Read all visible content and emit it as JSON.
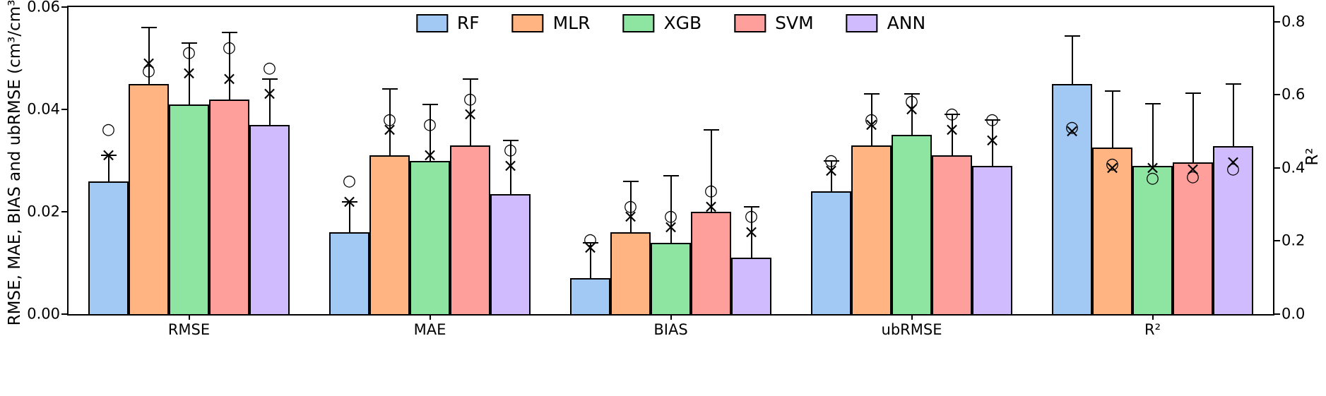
{
  "figure": {
    "background": "#ffffff"
  },
  "chart_data": {
    "type": "bar",
    "title": "",
    "ylabel_left": "RMSE, MAE, BIAS and ubRMSE (cm³/cm³)",
    "ylabel_right": "R²",
    "grid": false,
    "legend": {
      "position": "upper center",
      "entries": [
        "RF",
        "MLR",
        "XGB",
        "SVM",
        "ANN"
      ]
    },
    "series_colors": [
      "#a1c9f4",
      "#ffb482",
      "#8de5a1",
      "#ff9f9b",
      "#d0bbff"
    ],
    "edge_color": "#000000",
    "left_axis": {
      "min": 0.0,
      "max": 0.06,
      "ticks": [
        0.0,
        0.02,
        0.04,
        0.06
      ],
      "tick_labels": [
        "0.00",
        "0.02",
        "0.04",
        "0.06"
      ]
    },
    "right_axis": {
      "min": 0.0,
      "max": 0.84,
      "ticks": [
        0.0,
        0.2,
        0.4,
        0.6,
        0.8
      ],
      "tick_labels": [
        "0.0",
        "0.2",
        "0.4",
        "0.6",
        "0.8"
      ]
    },
    "marker_shapes": {
      "circle": "○",
      "cross": "×"
    },
    "groups": [
      {
        "label": "RMSE",
        "axis": "left",
        "bars": [
          {
            "series": "RF",
            "value": 0.026,
            "err_top": 0.031,
            "circle_marker": 0.036,
            "cross_marker": 0.031
          },
          {
            "series": "MLR",
            "value": 0.045,
            "err_top": 0.056,
            "circle_marker": 0.0475,
            "cross_marker": 0.049
          },
          {
            "series": "XGB",
            "value": 0.041,
            "err_top": 0.053,
            "circle_marker": 0.051,
            "cross_marker": 0.047
          },
          {
            "series": "SVM",
            "value": 0.042,
            "err_top": 0.055,
            "circle_marker": 0.052,
            "cross_marker": 0.046
          },
          {
            "series": "ANN",
            "value": 0.037,
            "err_top": 0.046,
            "circle_marker": 0.048,
            "cross_marker": 0.043
          }
        ]
      },
      {
        "label": "MAE",
        "axis": "left",
        "bars": [
          {
            "series": "RF",
            "value": 0.016,
            "err_top": 0.022,
            "circle_marker": 0.026,
            "cross_marker": 0.022
          },
          {
            "series": "MLR",
            "value": 0.031,
            "err_top": 0.044,
            "circle_marker": 0.038,
            "cross_marker": 0.036
          },
          {
            "series": "XGB",
            "value": 0.03,
            "err_top": 0.041,
            "circle_marker": 0.037,
            "cross_marker": 0.031
          },
          {
            "series": "SVM",
            "value": 0.033,
            "err_top": 0.046,
            "circle_marker": 0.042,
            "cross_marker": 0.039
          },
          {
            "series": "ANN",
            "value": 0.0235,
            "err_top": 0.034,
            "circle_marker": 0.032,
            "cross_marker": 0.029
          }
        ]
      },
      {
        "label": "BIAS",
        "axis": "left",
        "bars": [
          {
            "series": "RF",
            "value": 0.007,
            "err_top": 0.014,
            "circle_marker": 0.0145,
            "cross_marker": 0.013
          },
          {
            "series": "MLR",
            "value": 0.016,
            "err_top": 0.026,
            "circle_marker": 0.021,
            "cross_marker": 0.019
          },
          {
            "series": "XGB",
            "value": 0.014,
            "err_top": 0.027,
            "circle_marker": 0.019,
            "cross_marker": 0.017
          },
          {
            "series": "SVM",
            "value": 0.02,
            "err_top": 0.036,
            "circle_marker": 0.024,
            "cross_marker": 0.021
          },
          {
            "series": "ANN",
            "value": 0.011,
            "err_top": 0.021,
            "circle_marker": 0.019,
            "cross_marker": 0.016
          }
        ]
      },
      {
        "label": "ubRMSE",
        "axis": "left",
        "bars": [
          {
            "series": "RF",
            "value": 0.024,
            "err_top": 0.03,
            "circle_marker": 0.03,
            "cross_marker": 0.028
          },
          {
            "series": "MLR",
            "value": 0.033,
            "err_top": 0.043,
            "circle_marker": 0.038,
            "cross_marker": 0.037
          },
          {
            "series": "XGB",
            "value": 0.035,
            "err_top": 0.043,
            "circle_marker": 0.0415,
            "cross_marker": 0.04
          },
          {
            "series": "SVM",
            "value": 0.031,
            "err_top": 0.039,
            "circle_marker": 0.039,
            "cross_marker": 0.036
          },
          {
            "series": "ANN",
            "value": 0.029,
            "err_top": 0.038,
            "circle_marker": 0.038,
            "cross_marker": 0.034
          }
        ]
      },
      {
        "label": "R²",
        "axis": "right",
        "bars": [
          {
            "series": "RF",
            "value": 0.63,
            "err_top": 0.76,
            "circle_marker": 0.51,
            "cross_marker": 0.5
          },
          {
            "series": "MLR",
            "value": 0.455,
            "err_top": 0.61,
            "circle_marker": 0.41,
            "cross_marker": 0.4
          },
          {
            "series": "XGB",
            "value": 0.405,
            "err_top": 0.575,
            "circle_marker": 0.37,
            "cross_marker": 0.4
          },
          {
            "series": "SVM",
            "value": 0.415,
            "err_top": 0.605,
            "circle_marker": 0.375,
            "cross_marker": 0.395
          },
          {
            "series": "ANN",
            "value": 0.46,
            "err_top": 0.63,
            "circle_marker": 0.395,
            "cross_marker": 0.415
          }
        ]
      }
    ]
  }
}
